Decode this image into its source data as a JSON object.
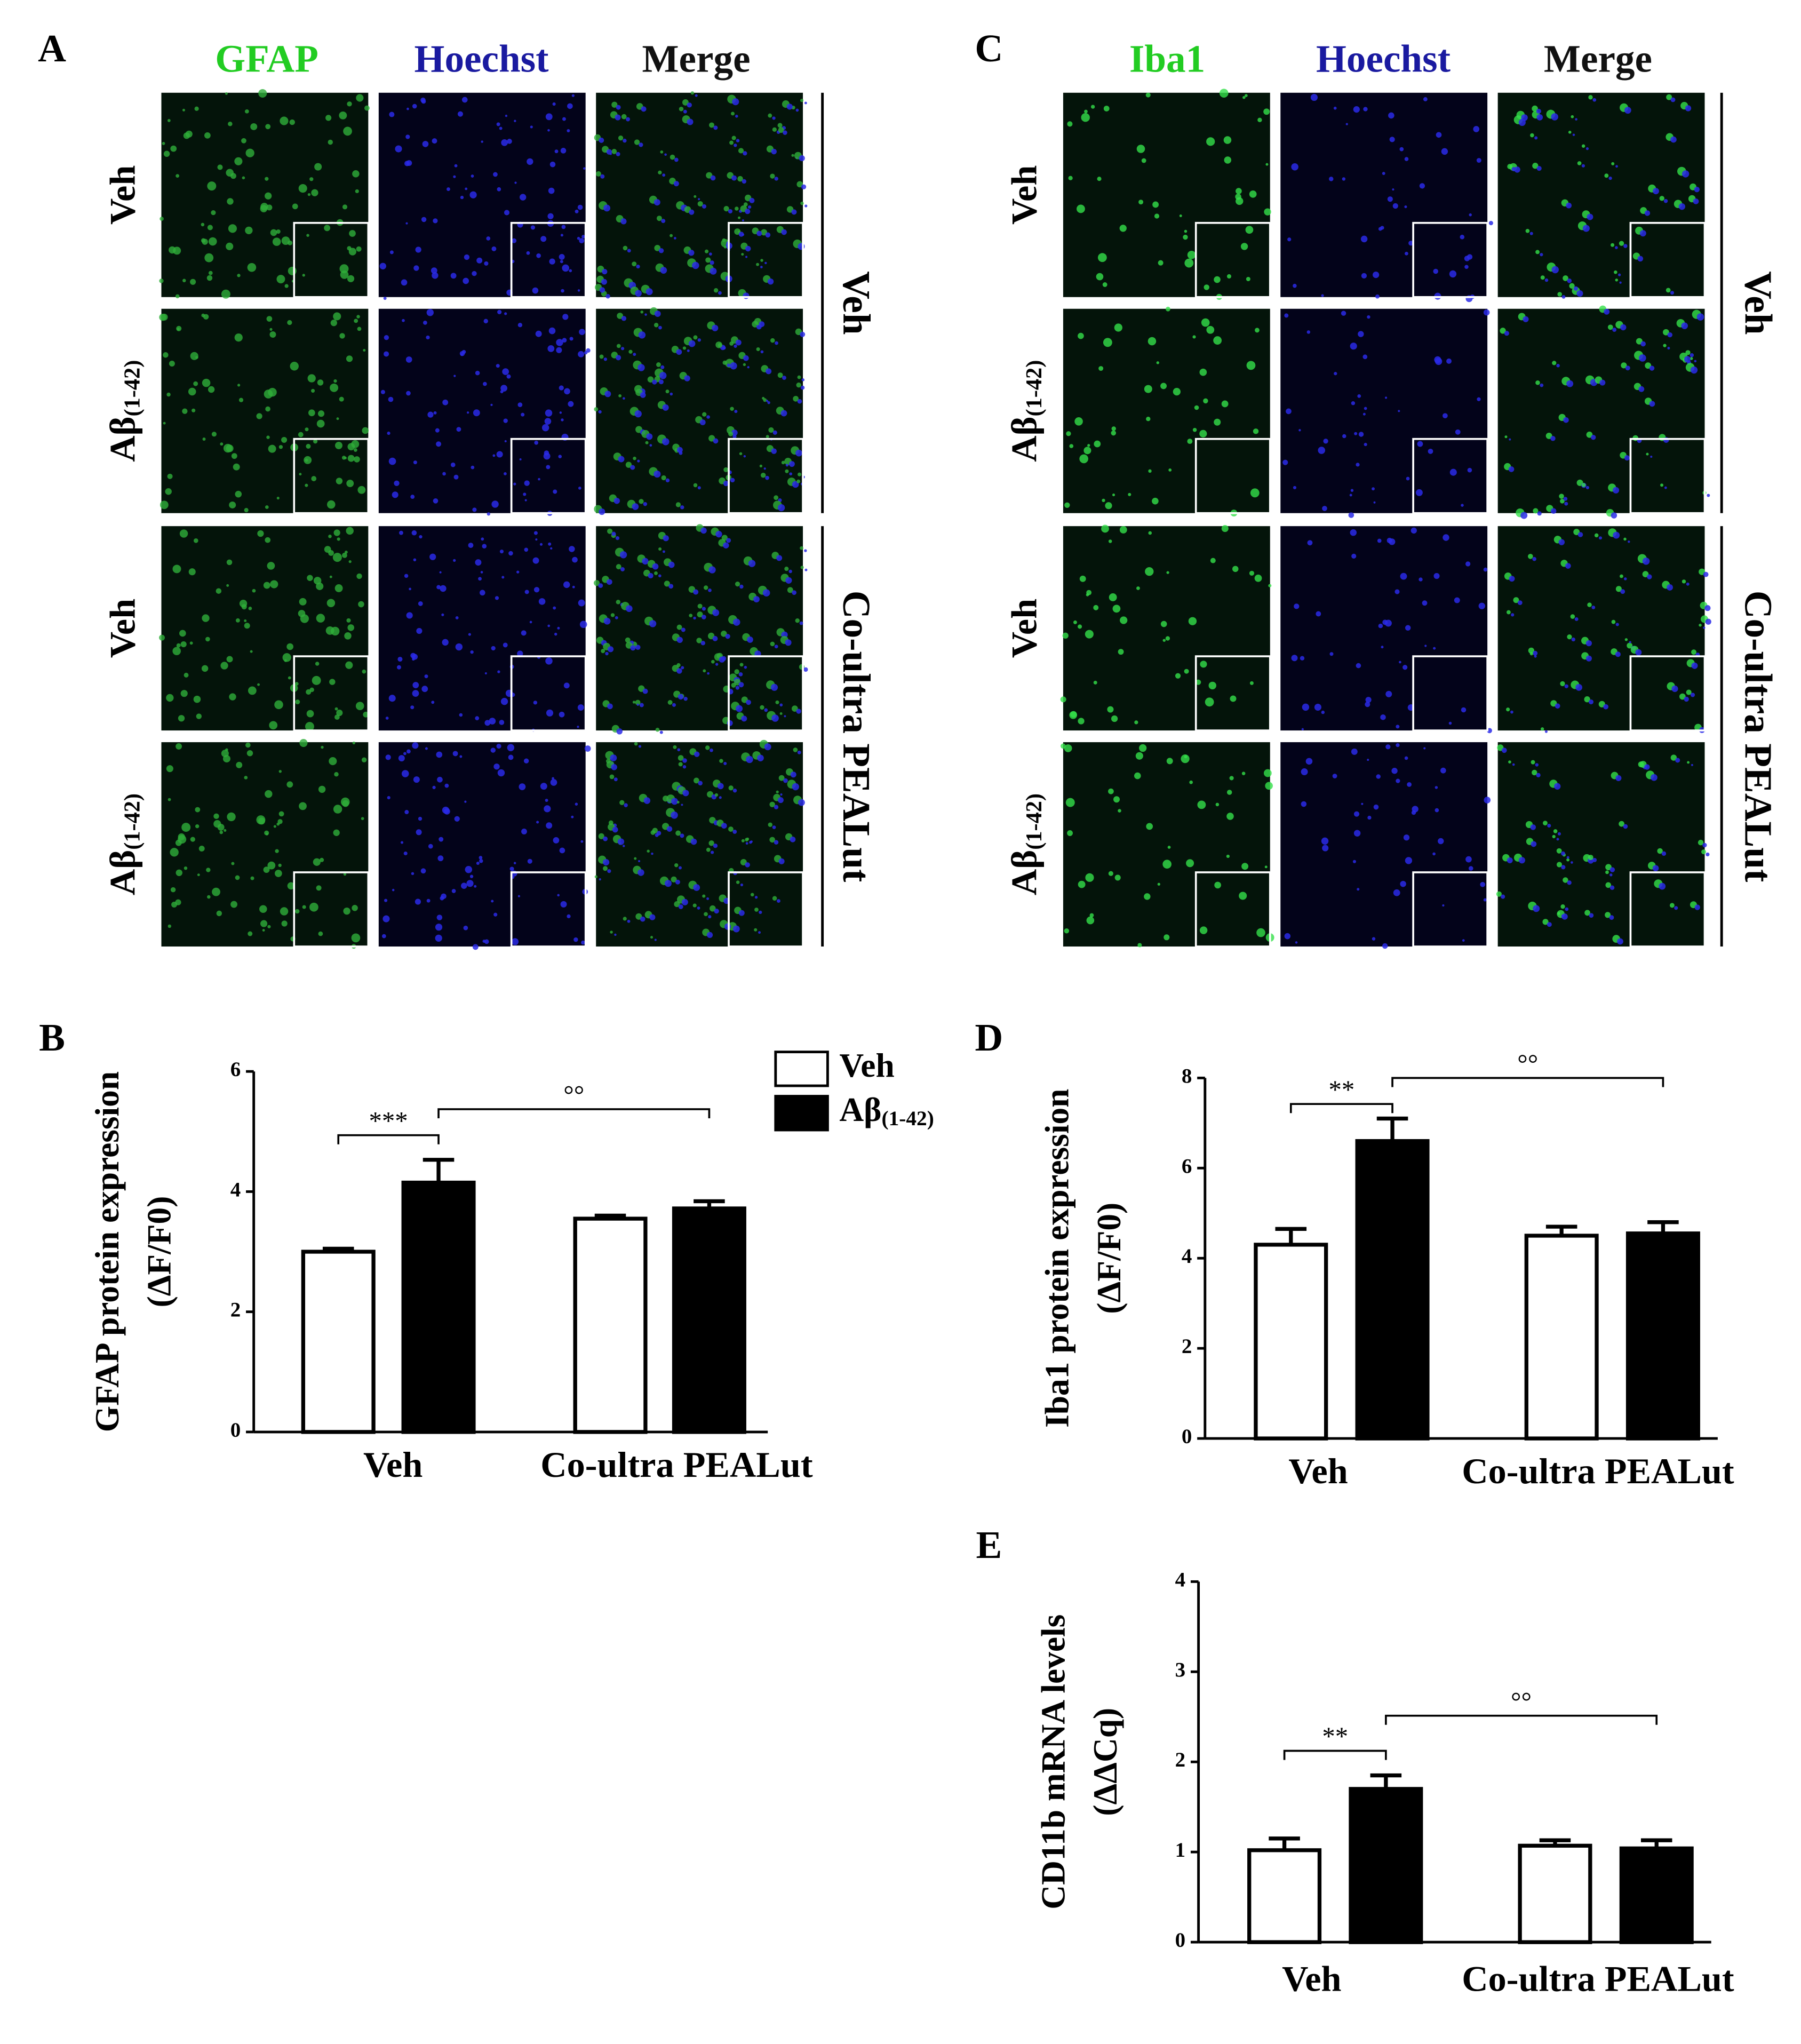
{
  "figure": {
    "panels": [
      {
        "letter": "A",
        "columns": [
          "GFAP",
          "Hoechst",
          "Merge"
        ],
        "column_colors": [
          "#22cc22",
          "#1a1aa0",
          "#111111"
        ],
        "rows": [
          "Veh",
          "Aβ(1-42)",
          "Veh",
          "Aβ(1-42)"
        ],
        "groups": [
          "Veh",
          "Co-ultra PEALut"
        ]
      },
      {
        "letter": "C",
        "columns": [
          "Iba1",
          "Hoechst",
          "Merge"
        ],
        "column_colors": [
          "#22cc22",
          "#1a1aa0",
          "#111111"
        ],
        "rows": [
          "Veh",
          "Aβ(1-42)",
          "Veh",
          "Aβ(1-42)"
        ],
        "groups": [
          "Veh",
          "Co-ultra PEALut"
        ]
      }
    ]
  },
  "chart_data": [
    {
      "type": "bar",
      "panel": "B",
      "y_label": [
        "GFAP protein expression",
        "(ΔF/F0)"
      ],
      "categories": [
        "Veh",
        "Co-ultra PEALut"
      ],
      "series": [
        {
          "name": "Veh",
          "color": "#ffffff",
          "values": [
            3.0,
            3.55
          ],
          "errors": [
            0.05,
            0.05
          ]
        },
        {
          "name": "Aβ(1-42)",
          "color": "#000000",
          "values": [
            4.15,
            3.72
          ],
          "errors": [
            0.38,
            0.12
          ]
        }
      ],
      "ylim": [
        0,
        6
      ],
      "yticks": [
        0,
        2,
        4,
        6
      ],
      "legend": "top-right",
      "annotations": [
        "***",
        "°°"
      ]
    },
    {
      "type": "bar",
      "panel": "D",
      "y_label": [
        "Iba1 protein expression",
        "(ΔF/F0)"
      ],
      "categories": [
        "Veh",
        "Co-ultra PEALut"
      ],
      "series": [
        {
          "name": "Veh",
          "color": "#ffffff",
          "values": [
            4.3,
            4.5
          ],
          "errors": [
            0.35,
            0.2
          ]
        },
        {
          "name": "Aβ(1-42)",
          "color": "#000000",
          "values": [
            6.6,
            4.55
          ],
          "errors": [
            0.5,
            0.25
          ]
        }
      ],
      "ylim": [
        0,
        8
      ],
      "yticks": [
        0,
        2,
        4,
        6,
        8
      ],
      "legend": "none",
      "annotations": [
        "**",
        "°°"
      ]
    },
    {
      "type": "bar",
      "panel": "E",
      "y_label": [
        "CD11b mRNA levels",
        "(ΔΔCq)"
      ],
      "categories": [
        "Veh",
        "Co-ultra PEALut"
      ],
      "series": [
        {
          "name": "Veh",
          "color": "#ffffff",
          "values": [
            1.02,
            1.07
          ],
          "errors": [
            0.13,
            0.06
          ]
        },
        {
          "name": "Aβ(1-42)",
          "color": "#000000",
          "values": [
            1.7,
            1.04
          ],
          "errors": [
            0.15,
            0.09
          ]
        }
      ],
      "ylim": [
        0,
        4
      ],
      "yticks": [
        0,
        1,
        2,
        3,
        4
      ],
      "legend": "none",
      "annotations": [
        "**",
        "°°"
      ]
    }
  ]
}
